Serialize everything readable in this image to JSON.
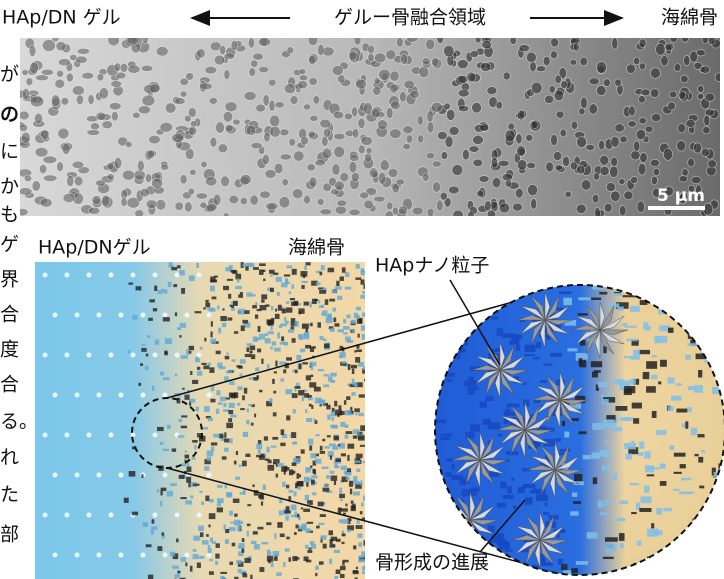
{
  "top_panel": {
    "left_label": "HAp/DN ゲル",
    "center_label": "ゲルー骨融合領域",
    "right_label": "海綿骨",
    "scale_bar": "5 µm"
  },
  "bottom_panel": {
    "gel_label": "HAp/DNゲル",
    "bone_label": "海綿骨",
    "particle_label": "HApナノ粒子",
    "growth_label": "骨形成の進展"
  },
  "margin_text": [
    "が",
    "の",
    "に",
    "か",
    "も",
    "ゲ",
    "界",
    "合",
    "度",
    "合",
    "る。",
    "れ",
    "た",
    "部"
  ]
}
